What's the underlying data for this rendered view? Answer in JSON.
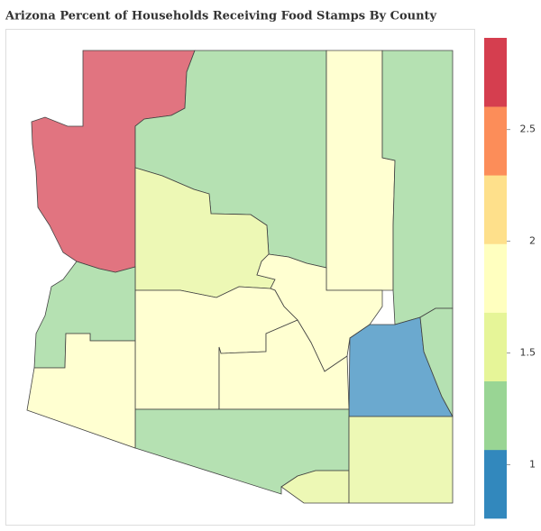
{
  "chart_data": {
    "type": "choropleth",
    "title": "Arizona Percent of Households Receiving Food Stamps By County",
    "values": [
      2.8,
      1.2,
      1.8,
      1.2,
      1.6,
      1.7,
      0.9,
      1.2,
      1.85,
      1.85,
      1.2,
      1.6,
      1.6,
      1.2,
      1.85
    ],
    "colorscale": {
      "range": [
        0.76,
        2.91
      ],
      "colors": [
        "#3288bd",
        "#99d594",
        "#e6f598",
        "#ffffbf",
        "#fee08b",
        "#fc8d59",
        "#d53e4f"
      ],
      "ticks": [
        1,
        1.5,
        2,
        2.5
      ]
    }
  }
}
